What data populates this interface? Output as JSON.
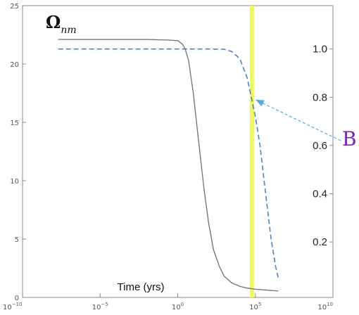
{
  "chart_data": {
    "type": "line",
    "xlabel": "Time (yrs)",
    "x_scale": "log",
    "xlim": [
      1e-10,
      10000000000.0
    ],
    "x_ticks": [
      {
        "value": 1e-10,
        "base": "10",
        "exp": "−10"
      },
      {
        "value": 1e-05,
        "base": "10",
        "exp": "−5"
      },
      {
        "value": 1,
        "base": "10",
        "exp": "0"
      },
      {
        "value": 100000.0,
        "base": "10",
        "exp": "5"
      },
      {
        "value": 10000000000.0,
        "base": "10",
        "exp": "10"
      }
    ],
    "left_axis": {
      "ylim": [
        0,
        25
      ],
      "ticks": [
        "0",
        "5",
        "10",
        "15",
        "20",
        "25"
      ]
    },
    "right_axis": {
      "ylim": [
        -0.03,
        1.18
      ],
      "ticks": [
        "0.2",
        "0.4",
        "0.6",
        "0.8",
        "1.0"
      ]
    },
    "series": [
      {
        "label_main": "Ω",
        "label_sub": "nm",
        "axis": "left",
        "style": "solid",
        "color": "#707070",
        "x": [
          2e-08,
          1e-06,
          0.0001,
          0.01,
          0.3,
          1,
          2,
          3,
          5,
          10,
          20,
          50,
          100,
          200,
          500,
          1000,
          3000,
          10000,
          30000,
          100000,
          300000,
          1000000,
          3000000
        ],
        "y": [
          22.1,
          22.1,
          22.1,
          22.1,
          22.05,
          22.0,
          21.7,
          21.3,
          20.3,
          17.5,
          13.9,
          9.2,
          6.3,
          4.1,
          2.6,
          1.8,
          1.25,
          0.95,
          0.8,
          0.7,
          0.65,
          0.6,
          0.55
        ]
      },
      {
        "axis": "right",
        "style": "dashed",
        "color": "#4a86c4",
        "x": [
          2e-08,
          1e-06,
          0.0001,
          0.01,
          1,
          10,
          100,
          1000,
          3000,
          10000,
          30000,
          100000,
          200000,
          500000,
          1000000,
          2000000,
          3000000
        ],
        "y": [
          1.0,
          1.0,
          1.0,
          1.0,
          1.0,
          1.0,
          1.0,
          0.999,
          0.99,
          0.96,
          0.88,
          0.72,
          0.6,
          0.38,
          0.22,
          0.1,
          0.05
        ]
      }
    ],
    "highlight_band": {
      "x": 60000,
      "color": "#eef762"
    },
    "annotation": {
      "text": "B",
      "color": "#7a1fb0",
      "arrow_color": "#5aa8d8",
      "points_to": {
        "x": 75000,
        "y_right": 0.8
      }
    }
  }
}
